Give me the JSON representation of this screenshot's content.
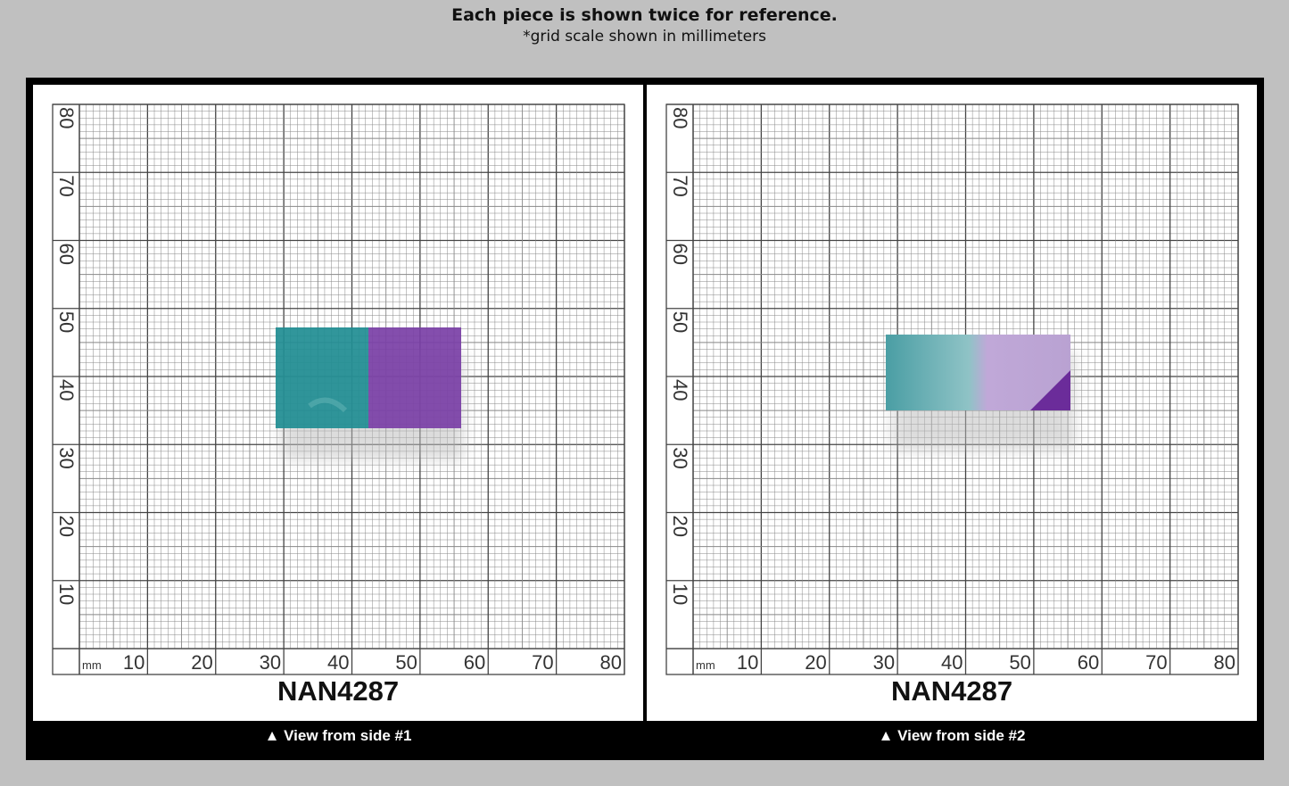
{
  "header": {
    "title": "Each piece is shown twice for reference.",
    "subtitle": "*grid scale shown in millimeters"
  },
  "panels": [
    {
      "unit": "mm",
      "x_labels": [
        10,
        20,
        30,
        40,
        50,
        60,
        70,
        80
      ],
      "y_labels": [
        80,
        70,
        60,
        50,
        40,
        30,
        20,
        10
      ],
      "code": "NAN4287",
      "caption": "▲ View from side #1"
    },
    {
      "unit": "mm",
      "x_labels": [
        10,
        20,
        30,
        40,
        50,
        60,
        70,
        80
      ],
      "y_labels": [
        80,
        70,
        60,
        50,
        40,
        30,
        20,
        10
      ],
      "code": "NAN4287",
      "caption": "▲ View from side #2"
    }
  ]
}
